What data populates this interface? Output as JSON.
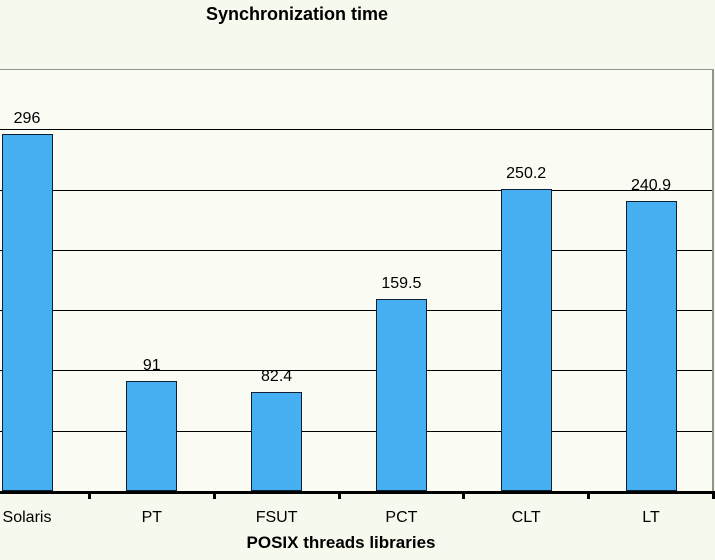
{
  "chart_data": {
    "type": "bar",
    "title": "Synchronization time",
    "xlabel": "POSIX threads libraries",
    "ylabel": "",
    "categories": [
      "Solaris",
      "PT",
      "FSUT",
      "PCT",
      "CLT",
      "LT"
    ],
    "values": [
      296,
      91,
      82.4,
      159.5,
      250.2,
      240.9
    ],
    "value_labels": [
      "296",
      "91",
      "82.4",
      "159.5",
      "250.2",
      "240.9"
    ],
    "ylim": [
      0,
      350
    ],
    "grid_step": 50,
    "grid": true,
    "legend": false,
    "y_axis_labels_visible": false,
    "colors": {
      "page_bg": "#f6f9ee",
      "plot_bg": "#fafcf4",
      "bar_fill": "#46aff2",
      "bar_border": "#0f1f33",
      "gridline": "#000000",
      "axis": "#000000",
      "plot_border": "#8d968f",
      "text": "#000000"
    }
  }
}
